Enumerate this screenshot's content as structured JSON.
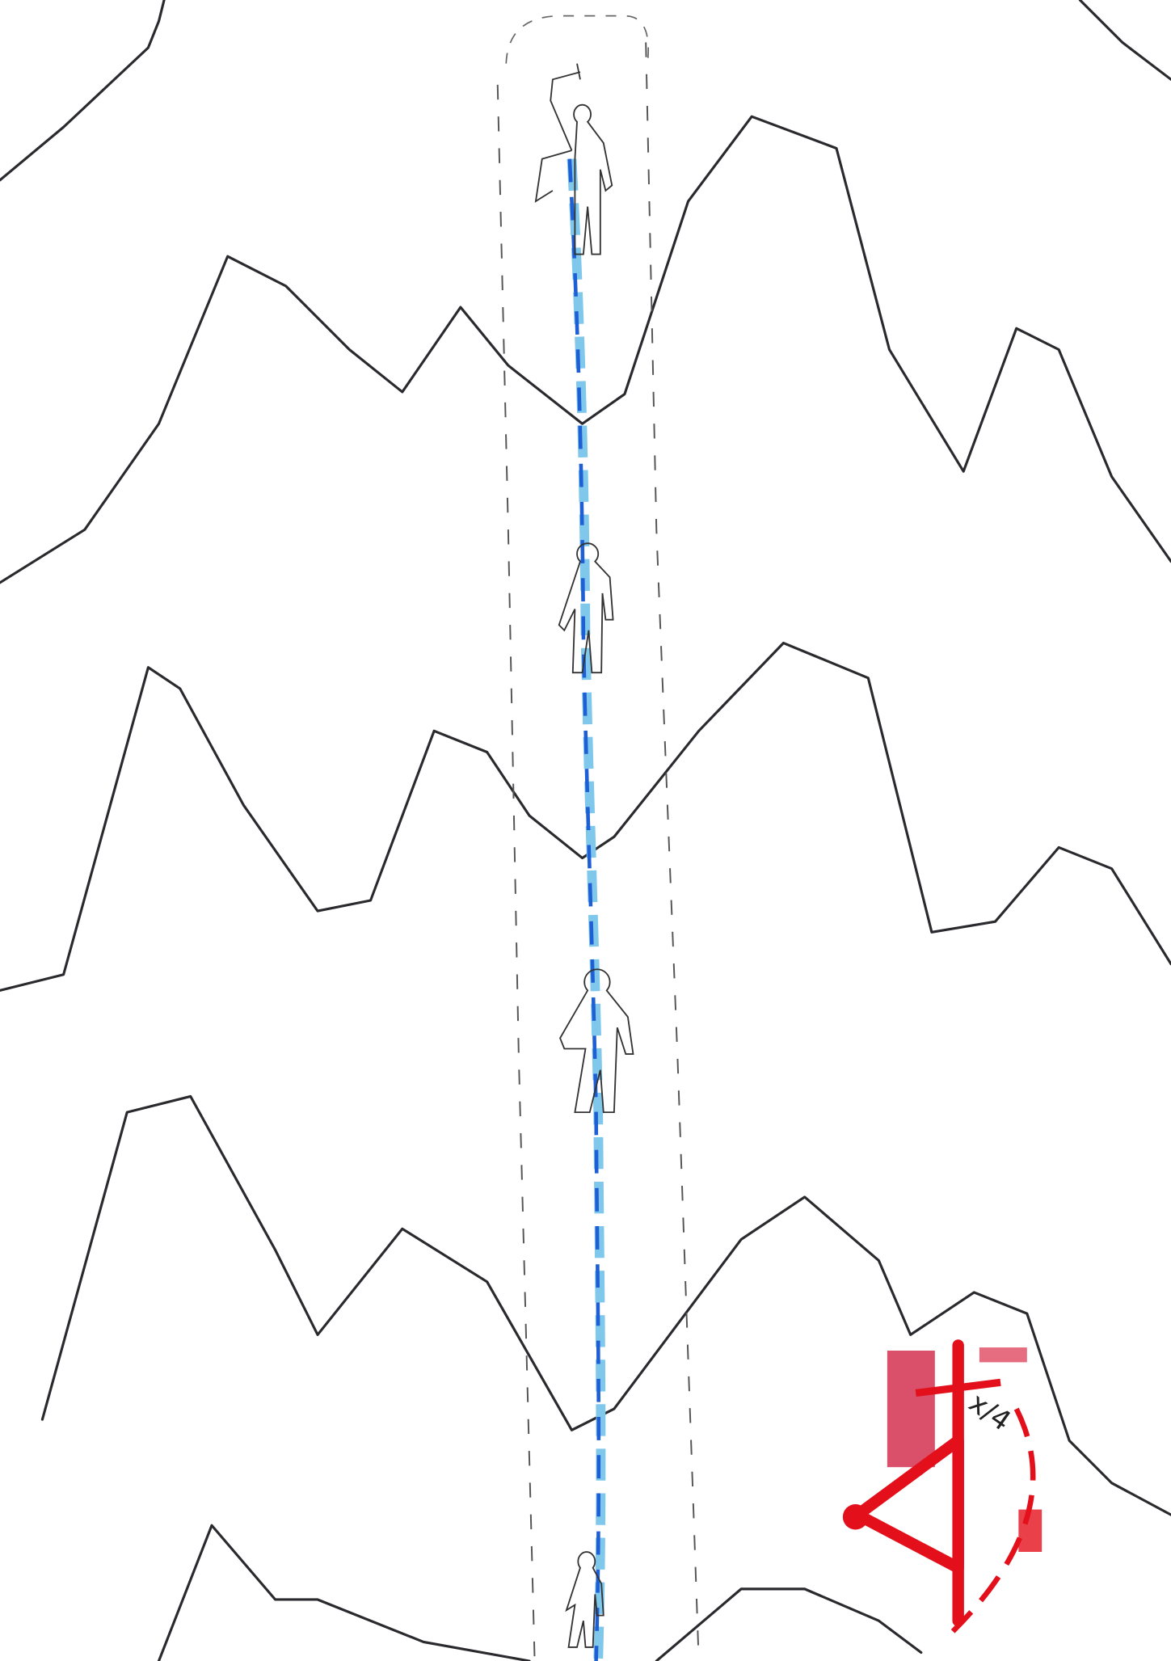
{
  "stamp": {
    "text": "x/4"
  }
}
